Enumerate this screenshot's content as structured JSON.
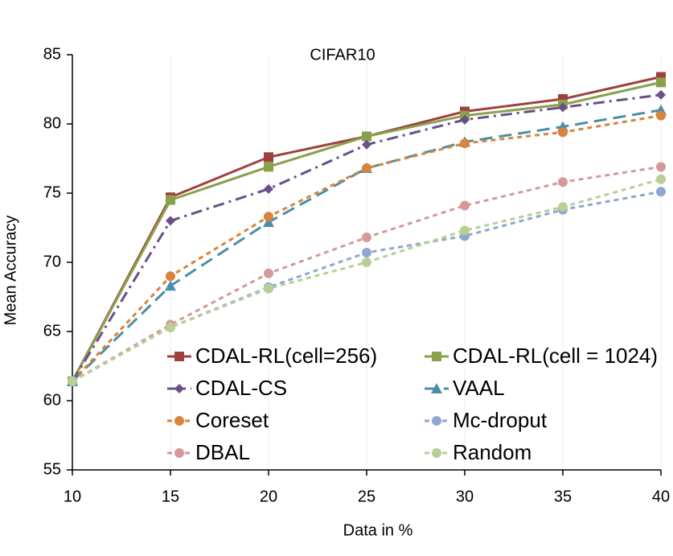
{
  "chart_data": {
    "type": "line",
    "title": "CIFAR10",
    "x_label": "Data in %",
    "y_label": "Mean Accuracy",
    "x": [
      10,
      15,
      20,
      25,
      30,
      35,
      40
    ],
    "xlim": [
      10,
      40
    ],
    "xticks": [
      10,
      15,
      20,
      25,
      30,
      35,
      40
    ],
    "ylim": [
      55,
      85
    ],
    "yticks": [
      55,
      60,
      65,
      70,
      75,
      80,
      85
    ],
    "grid": "x",
    "series": [
      {
        "name": "CDAL-RL(cell=256)",
        "color": "#9e413e",
        "marker": "square",
        "dash": "solid",
        "values": [
          61.4,
          74.7,
          77.6,
          79.1,
          80.9,
          81.8,
          83.4
        ]
      },
      {
        "name": "CDAL-RL(cell = 1024)",
        "color": "#8aa04a",
        "marker": "square",
        "dash": "solid",
        "values": [
          61.4,
          74.5,
          76.9,
          79.1,
          80.6,
          81.4,
          83.0
        ]
      },
      {
        "name": "CDAL-CS",
        "color": "#6a4f8a",
        "marker": "diamond",
        "dash": "dashdot",
        "values": [
          61.4,
          73.0,
          75.3,
          78.5,
          80.3,
          81.2,
          82.1
        ]
      },
      {
        "name": "VAAL",
        "color": "#4a8fa8",
        "marker": "triangle",
        "dash": "longdash",
        "values": [
          61.4,
          68.3,
          72.9,
          76.8,
          78.7,
          79.8,
          81.0
        ]
      },
      {
        "name": "Coreset",
        "color": "#d9843c",
        "marker": "circle",
        "dash": "dash",
        "values": [
          61.4,
          69.0,
          73.3,
          76.8,
          78.6,
          79.4,
          80.6
        ]
      },
      {
        "name": "Mc-droput",
        "color": "#8fa6cf",
        "marker": "circle",
        "dash": "dash",
        "values": [
          61.4,
          65.3,
          68.2,
          70.7,
          71.9,
          73.8,
          75.1
        ]
      },
      {
        "name": "DBAL",
        "color": "#d49a9a",
        "marker": "circle",
        "dash": "dash",
        "values": [
          61.4,
          65.5,
          69.2,
          71.8,
          74.1,
          75.8,
          76.9
        ]
      },
      {
        "name": "Random",
        "color": "#b8cf95",
        "marker": "circle",
        "dash": "dash",
        "values": [
          61.4,
          65.3,
          68.1,
          70.0,
          72.3,
          74.0,
          76.0
        ]
      }
    ]
  }
}
